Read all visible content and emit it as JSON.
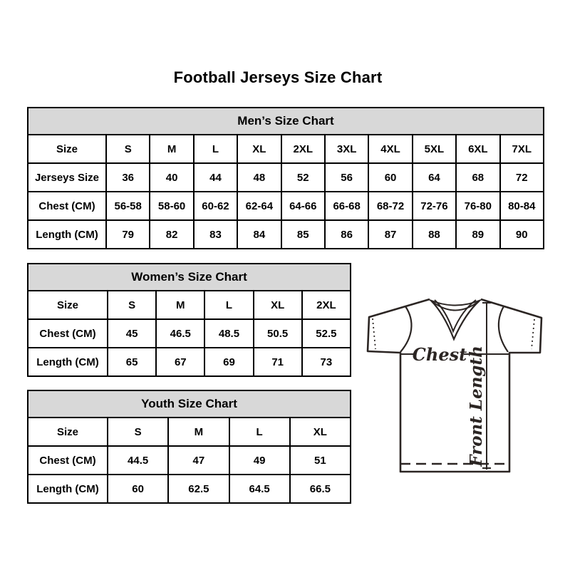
{
  "page": {
    "title": "Football Jerseys Size Chart"
  },
  "tables": {
    "mens": {
      "title": "Men’s Size Chart",
      "rows": [
        {
          "label": "Size",
          "values": [
            "S",
            "M",
            "L",
            "XL",
            "2XL",
            "3XL",
            "4XL",
            "5XL",
            "6XL",
            "7XL"
          ]
        },
        {
          "label": "Jerseys Size",
          "values": [
            "36",
            "40",
            "44",
            "48",
            "52",
            "56",
            "60",
            "64",
            "68",
            "72"
          ]
        },
        {
          "label": "Chest (CM)",
          "values": [
            "56-58",
            "58-60",
            "60-62",
            "62-64",
            "64-66",
            "66-68",
            "68-72",
            "72-76",
            "76-80",
            "80-84"
          ]
        },
        {
          "label": "Length (CM)",
          "values": [
            "79",
            "82",
            "83",
            "84",
            "85",
            "86",
            "87",
            "88",
            "89",
            "90"
          ]
        }
      ]
    },
    "womens": {
      "title": "Women’s Size Chart",
      "rows": [
        {
          "label": "Size",
          "values": [
            "S",
            "M",
            "L",
            "XL",
            "2XL"
          ]
        },
        {
          "label": "Chest (CM)",
          "values": [
            "45",
            "46.5",
            "48.5",
            "50.5",
            "52.5"
          ]
        },
        {
          "label": "Length (CM)",
          "values": [
            "65",
            "67",
            "69",
            "71",
            "73"
          ]
        }
      ]
    },
    "youth": {
      "title": "Youth Size Chart",
      "rows": [
        {
          "label": "Size",
          "values": [
            "S",
            "M",
            "L",
            "XL"
          ]
        },
        {
          "label": "Chest (CM)",
          "values": [
            "44.5",
            "47",
            "49",
            "51"
          ]
        },
        {
          "label": "Length (CM)",
          "values": [
            "60",
            "62.5",
            "64.5",
            "66.5"
          ]
        }
      ]
    }
  },
  "diagram": {
    "chest_label": "Chest",
    "front_length_label": "Front Length"
  },
  "colors": {
    "header_bg": "#d8d8d8",
    "border": "#000000",
    "text": "#000000",
    "diagram_stroke": "#2b2523"
  }
}
